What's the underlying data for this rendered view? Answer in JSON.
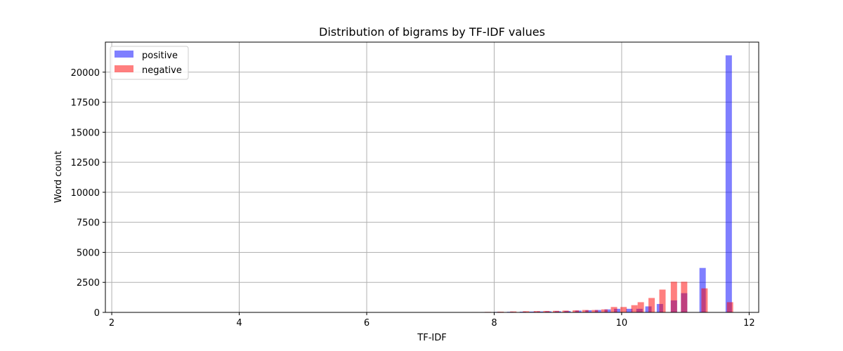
{
  "chart_data": {
    "type": "bar",
    "title": "Distribution of bigrams by TF-IDF values",
    "xlabel": "TF-IDF",
    "ylabel": "Word count",
    "xlim": [
      1.9,
      12.15
    ],
    "ylim": [
      0,
      22500
    ],
    "xticks": [
      2,
      4,
      6,
      8,
      10,
      12
    ],
    "yticks": [
      0,
      2500,
      5000,
      7500,
      10000,
      12500,
      15000,
      17500,
      20000
    ],
    "grid": true,
    "legend": "top-left",
    "series": [
      {
        "name": "positive",
        "color": "#0000ff",
        "opacity": 0.5,
        "x": [
          6.65,
          6.85,
          7.05,
          7.25,
          7.45,
          7.65,
          7.85,
          8.05,
          8.25,
          8.45,
          8.6,
          8.72,
          8.85,
          9.0,
          9.15,
          9.32,
          9.48,
          9.63,
          9.78,
          9.93,
          10.12,
          10.28,
          10.42,
          10.6,
          10.82,
          10.98,
          11.27,
          11.68
        ],
        "values": [
          20,
          20,
          20,
          20,
          20,
          25,
          30,
          40,
          50,
          60,
          70,
          80,
          90,
          100,
          120,
          150,
          180,
          200,
          250,
          300,
          300,
          300,
          500,
          700,
          1000,
          1600,
          3700,
          21400
        ]
      },
      {
        "name": "negative",
        "color": "#ff0000",
        "opacity": 0.5,
        "x": [
          6.7,
          6.9,
          7.1,
          7.3,
          7.5,
          7.7,
          7.9,
          8.1,
          8.3,
          8.5,
          8.67,
          8.82,
          8.97,
          9.12,
          9.28,
          9.43,
          9.58,
          9.73,
          9.88,
          10.03,
          10.2,
          10.3,
          10.47,
          10.64,
          10.82,
          10.98,
          11.3,
          11.7
        ],
        "values": [
          20,
          20,
          20,
          20,
          20,
          30,
          40,
          60,
          80,
          100,
          110,
          120,
          130,
          150,
          170,
          200,
          200,
          250,
          450,
          450,
          600,
          850,
          1200,
          1900,
          2550,
          2550,
          2000,
          850
        ]
      }
    ]
  }
}
